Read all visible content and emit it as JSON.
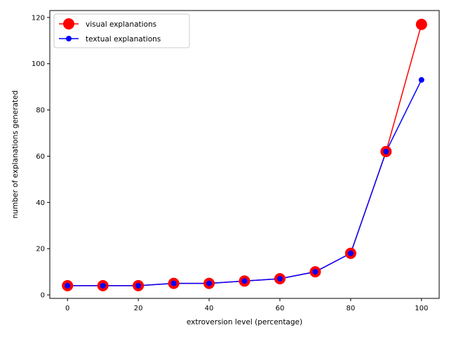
{
  "chart_data": {
    "type": "line",
    "title": "",
    "xlabel": "extroversion level (percentage)",
    "ylabel": "number of explanations generated",
    "xlim": [
      -5,
      105
    ],
    "ylim": [
      -1.5,
      123
    ],
    "xticks": [
      0,
      20,
      40,
      60,
      80,
      100
    ],
    "yticks": [
      0,
      20,
      40,
      60,
      80,
      100,
      120
    ],
    "grid": false,
    "legend_position": "top-left",
    "x": [
      0,
      10,
      20,
      30,
      40,
      50,
      60,
      70,
      80,
      90,
      100
    ],
    "series": [
      {
        "name": "visual explanations",
        "color": "#ff0000",
        "marker": "large-circle",
        "values": [
          4,
          4,
          4,
          5,
          5,
          6,
          7,
          10,
          18,
          62,
          117
        ]
      },
      {
        "name": "textual explanations",
        "color": "#0000ff",
        "marker": "small-circle",
        "values": [
          4,
          4,
          4,
          5,
          5,
          6,
          7,
          10,
          18,
          62,
          93
        ]
      }
    ]
  }
}
